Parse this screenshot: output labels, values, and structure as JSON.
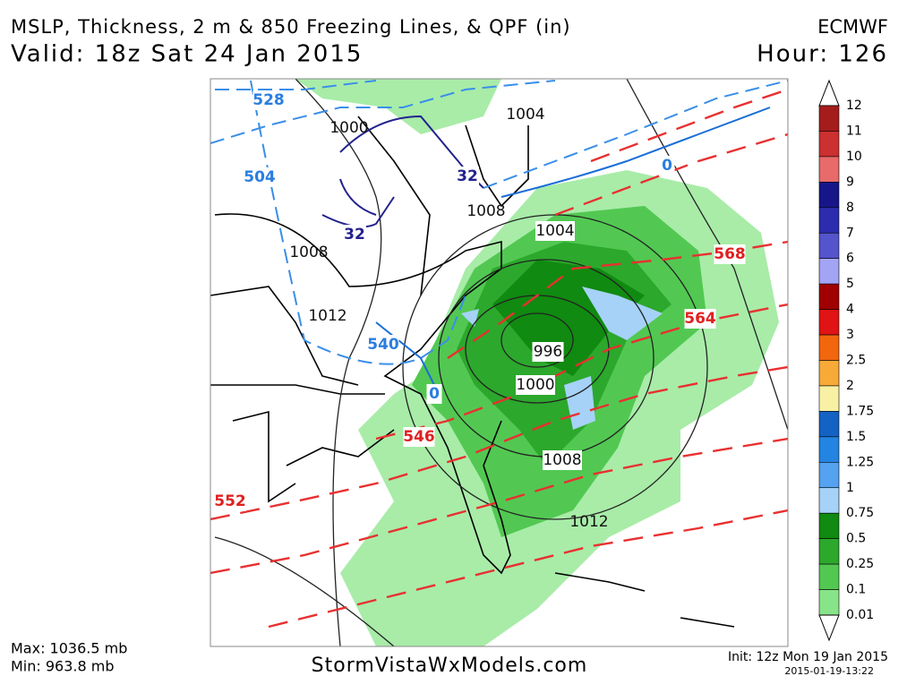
{
  "header": {
    "title": "MSLP, Thickness, 2 m & 850 Freezing Lines, & QPF (in)",
    "model": "ECMWF",
    "valid": "Valid: 18z Sat 24 Jan 2015",
    "hour": "Hour: 126"
  },
  "colorbar": {
    "labels": [
      "12",
      "11",
      "10",
      "9",
      "8",
      "7",
      "6",
      "5",
      "4",
      "3",
      "2.5",
      "2",
      "1.75",
      "1.5",
      "1.25",
      "1",
      "0.75",
      "0.5",
      "0.25",
      "0.1",
      "0.01"
    ],
    "colors": [
      "#a51c1c",
      "#cc3030",
      "#e86a6a",
      "#16168a",
      "#2c2cae",
      "#5454cc",
      "#a4a4f4",
      "#a00000",
      "#e01414",
      "#f2660e",
      "#f8aa38",
      "#f8f0a4",
      "#1462c4",
      "#2484e2",
      "#54a2f0",
      "#a6d2f8",
      "#108a10",
      "#2ca82c",
      "#52c852",
      "#88e488"
    ]
  },
  "map": {
    "labels": [
      "528",
      "1000",
      "1004",
      "504",
      "32",
      "1008",
      "32",
      "1008",
      "1004",
      "568",
      "1012",
      "564",
      "540",
      "996",
      "1000",
      "0",
      "0",
      "546",
      "1008",
      "552",
      "1012"
    ]
  },
  "footer": {
    "max": "Max: 1036.5 mb",
    "min": "Min: 963.8 mb",
    "site": "StormVistaWxModels.com",
    "init": "Init: 12z Mon 19 Jan 2015",
    "stamp": "2015-01-19-13:22"
  }
}
